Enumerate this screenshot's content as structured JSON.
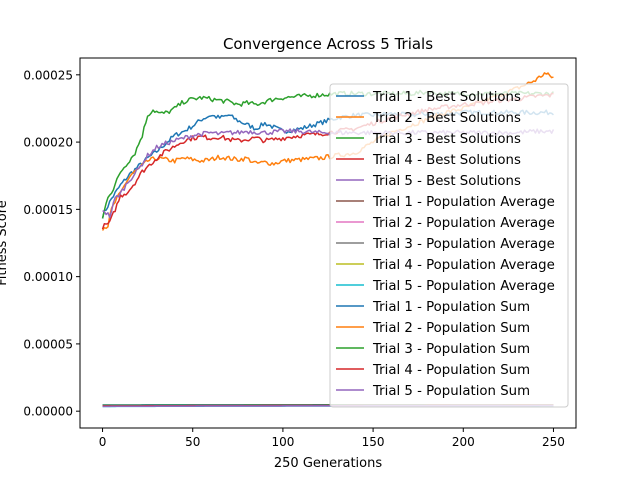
{
  "chart_data": {
    "type": "line",
    "title": "Convergence Across 5 Trials",
    "xlabel": "250 Generations",
    "ylabel": "Fitness Score",
    "xlim": [
      -12.5,
      262.5
    ],
    "ylim": [
      -1.25e-05,
      0.0002625
    ],
    "xticks": [
      0,
      50,
      100,
      150,
      200,
      250
    ],
    "xtick_labels": [
      "0",
      "50",
      "100",
      "150",
      "200",
      "250"
    ],
    "yticks": [
      0,
      5e-05,
      0.0001,
      0.00015,
      0.0002,
      0.00025
    ],
    "ytick_labels": [
      "0.00000",
      "0.00005",
      "0.00010",
      "0.00015",
      "0.00020",
      "0.00025"
    ],
    "grid": false,
    "legend_position": "upper-right",
    "series": [
      {
        "name": "Trial 1 - Best Solutions",
        "color": "#1f77b4",
        "points": [
          [
            0,
            0.000145
          ],
          [
            5,
            0.000158
          ],
          [
            10,
            0.000168
          ],
          [
            15,
            0.000176
          ],
          [
            20,
            0.000182
          ],
          [
            25,
            0.000188
          ],
          [
            30,
            0.000193
          ],
          [
            35,
            0.000199
          ],
          [
            40,
            0.000205
          ],
          [
            45,
            0.000208
          ],
          [
            50,
            0.000212
          ],
          [
            55,
            0.000217
          ],
          [
            60,
            0.00022
          ],
          [
            65,
            0.000218
          ],
          [
            70,
            0.00022
          ],
          [
            75,
            0.000216
          ],
          [
            80,
            0.000213
          ],
          [
            85,
            0.00021
          ],
          [
            90,
            0.000214
          ],
          [
            95,
            0.000211
          ],
          [
            100,
            0.000208
          ],
          [
            110,
            0.00021
          ],
          [
            120,
            0.000214
          ],
          [
            130,
            0.000218
          ],
          [
            140,
            0.00022
          ],
          [
            150,
            0.00022
          ],
          [
            160,
            0.000221
          ],
          [
            170,
            0.00022
          ],
          [
            180,
            0.000221
          ],
          [
            190,
            0.000221
          ],
          [
            200,
            0.000222
          ],
          [
            210,
            0.000222
          ],
          [
            220,
            0.000222
          ],
          [
            230,
            0.000222
          ],
          [
            240,
            0.000222
          ],
          [
            250,
            0.000222
          ]
        ]
      },
      {
        "name": "Trial 2 - Best Solutions",
        "color": "#ff7f0e",
        "points": [
          [
            0,
            0.000136
          ],
          [
            3,
            0.000138
          ],
          [
            5,
            0.00015
          ],
          [
            8,
            0.000158
          ],
          [
            10,
            0.000162
          ],
          [
            13,
            0.00017
          ],
          [
            16,
            0.000176
          ],
          [
            20,
            0.00018
          ],
          [
            25,
            0.000186
          ],
          [
            30,
            0.000188
          ],
          [
            35,
            0.000187
          ],
          [
            40,
            0.000186
          ],
          [
            45,
            0.000188
          ],
          [
            50,
            0.000187
          ],
          [
            55,
            0.000186
          ],
          [
            60,
            0.000187
          ],
          [
            65,
            0.000189
          ],
          [
            70,
            0.000188
          ],
          [
            75,
            0.000187
          ],
          [
            80,
            0.000188
          ],
          [
            85,
            0.000184
          ],
          [
            90,
            0.000185
          ],
          [
            95,
            0.000184
          ],
          [
            100,
            0.000186
          ],
          [
            110,
            0.000187
          ],
          [
            120,
            0.000188
          ],
          [
            130,
            0.00019
          ],
          [
            140,
            0.000192
          ],
          [
            150,
            0.0002
          ],
          [
            160,
            0.000207
          ],
          [
            170,
            0.000212
          ],
          [
            180,
            0.000217
          ],
          [
            190,
            0.000222
          ],
          [
            200,
            0.000225
          ],
          [
            210,
            0.00023
          ],
          [
            220,
            0.000235
          ],
          [
            230,
            0.00024
          ],
          [
            240,
            0.000246
          ],
          [
            245,
            0.000251
          ],
          [
            250,
            0.000248
          ]
        ]
      },
      {
        "name": "Trial 3 - Best Solutions",
        "color": "#2ca02c",
        "points": [
          [
            0,
            0.000143
          ],
          [
            3,
            0.00016
          ],
          [
            6,
            0.000165
          ],
          [
            10,
            0.000178
          ],
          [
            14,
            0.000185
          ],
          [
            18,
            0.000192
          ],
          [
            22,
            0.000205
          ],
          [
            25,
            0.00022
          ],
          [
            28,
            0.000224
          ],
          [
            32,
            0.000221
          ],
          [
            36,
            0.000222
          ],
          [
            40,
            0.000225
          ],
          [
            45,
            0.00023
          ],
          [
            50,
            0.000232
          ],
          [
            55,
            0.000233
          ],
          [
            60,
            0.000232
          ],
          [
            65,
            0.000231
          ],
          [
            70,
            0.00023
          ],
          [
            75,
            0.000228
          ],
          [
            80,
            0.000229
          ],
          [
            85,
            0.000228
          ],
          [
            90,
            0.00023
          ],
          [
            95,
            0.000232
          ],
          [
            100,
            0.000233
          ],
          [
            110,
            0.000234
          ],
          [
            120,
            0.000235
          ],
          [
            130,
            0.000236
          ],
          [
            140,
            0.000236
          ],
          [
            150,
            0.000236
          ],
          [
            160,
            0.000236
          ],
          [
            170,
            0.000236
          ],
          [
            180,
            0.000237
          ],
          [
            190,
            0.000236
          ],
          [
            200,
            0.000236
          ],
          [
            210,
            0.000236
          ],
          [
            220,
            0.000236
          ],
          [
            230,
            0.000236
          ],
          [
            240,
            0.000236
          ],
          [
            250,
            0.000236
          ]
        ]
      },
      {
        "name": "Trial 4 - Best Solutions",
        "color": "#d62728",
        "points": [
          [
            0,
            0.000137
          ],
          [
            4,
            0.00014
          ],
          [
            7,
            0.00015
          ],
          [
            10,
            0.00016
          ],
          [
            14,
            0.000163
          ],
          [
            18,
            0.00017
          ],
          [
            22,
            0.000178
          ],
          [
            26,
            0.000183
          ],
          [
            30,
            0.000188
          ],
          [
            35,
            0.000193
          ],
          [
            40,
            0.000197
          ],
          [
            45,
            0.000201
          ],
          [
            50,
            0.000203
          ],
          [
            55,
            0.000204
          ],
          [
            60,
            0.000203
          ],
          [
            65,
            0.000204
          ],
          [
            70,
            0.000202
          ],
          [
            75,
            0.000201
          ],
          [
            80,
            0.000202
          ],
          [
            85,
            0.000203
          ],
          [
            90,
            0.000201
          ],
          [
            95,
            0.000202
          ],
          [
            100,
            0.000203
          ],
          [
            110,
            0.000205
          ],
          [
            120,
            0.000206
          ],
          [
            130,
            0.000208
          ],
          [
            140,
            0.00021
          ],
          [
            150,
            0.000214
          ],
          [
            160,
            0.000218
          ],
          [
            170,
            0.000221
          ],
          [
            180,
            0.000224
          ],
          [
            190,
            0.000226
          ],
          [
            200,
            0.000228
          ],
          [
            210,
            0.000229
          ],
          [
            220,
            0.000231
          ],
          [
            230,
            0.000232
          ],
          [
            240,
            0.000234
          ],
          [
            250,
            0.000235
          ]
        ]
      },
      {
        "name": "Trial 5 - Best Solutions",
        "color": "#9467bd",
        "points": [
          [
            0,
            0.00015
          ],
          [
            4,
            0.000145
          ],
          [
            7,
            0.000158
          ],
          [
            10,
            0.000162
          ],
          [
            15,
            0.000172
          ],
          [
            20,
            0.00018
          ],
          [
            25,
            0.00019
          ],
          [
            30,
            0.000196
          ],
          [
            35,
            0.000199
          ],
          [
            40,
            0.000201
          ],
          [
            45,
            0.000203
          ],
          [
            50,
            0.000205
          ],
          [
            55,
            0.000206
          ],
          [
            60,
            0.000207
          ],
          [
            65,
            0.000206
          ],
          [
            70,
            0.000207
          ],
          [
            75,
            0.000207
          ],
          [
            80,
            0.000208
          ],
          [
            90,
            0.000207
          ],
          [
            100,
            0.000208
          ],
          [
            110,
            0.000208
          ],
          [
            120,
            0.000207
          ],
          [
            130,
            0.000207
          ],
          [
            140,
            0.000207
          ],
          [
            150,
            0.000207
          ],
          [
            160,
            0.000207
          ],
          [
            170,
            0.000207
          ],
          [
            180,
            0.000207
          ],
          [
            190,
            0.000207
          ],
          [
            200,
            0.000207
          ],
          [
            210,
            0.000207
          ],
          [
            220,
            0.000207
          ],
          [
            230,
            0.000207
          ],
          [
            240,
            0.000208
          ],
          [
            250,
            0.000208
          ]
        ]
      },
      {
        "name": "Trial 1 - Population Average",
        "color": "#8c564b",
        "points": [
          [
            0,
            4.5e-06
          ],
          [
            50,
            4.6e-06
          ],
          [
            100,
            4.6e-06
          ],
          [
            150,
            4.7e-06
          ],
          [
            200,
            4.7e-06
          ],
          [
            250,
            4.7e-06
          ]
        ]
      },
      {
        "name": "Trial 2 - Population Average",
        "color": "#e377c2",
        "points": [
          [
            0,
            4e-06
          ],
          [
            50,
            4.1e-06
          ],
          [
            100,
            4.2e-06
          ],
          [
            150,
            4.3e-06
          ],
          [
            200,
            4.4e-06
          ],
          [
            250,
            4.5e-06
          ]
        ]
      },
      {
        "name": "Trial 3 - Population Average",
        "color": "#7f7f7f",
        "points": [
          [
            0,
            4.2e-06
          ],
          [
            50,
            4.3e-06
          ],
          [
            100,
            4.4e-06
          ],
          [
            150,
            4.5e-06
          ],
          [
            200,
            4.5e-06
          ],
          [
            250,
            4.6e-06
          ]
        ]
      },
      {
        "name": "Trial 4 - Population Average",
        "color": "#bcbd22",
        "points": [
          [
            0,
            3.8e-06
          ],
          [
            50,
            4e-06
          ],
          [
            100,
            4.1e-06
          ],
          [
            150,
            4.2e-06
          ],
          [
            200,
            4.3e-06
          ],
          [
            250,
            4.4e-06
          ]
        ]
      },
      {
        "name": "Trial 5 - Population Average",
        "color": "#17becf",
        "points": [
          [
            0,
            3.5e-06
          ],
          [
            50,
            3.7e-06
          ],
          [
            100,
            3.8e-06
          ],
          [
            150,
            3.9e-06
          ],
          [
            200,
            4e-06
          ],
          [
            250,
            4.1e-06
          ]
        ]
      },
      {
        "name": "Trial 1 - Population Sum",
        "color": "#1f77b4",
        "points": [
          [
            0,
            4.6e-06
          ],
          [
            50,
            4.7e-06
          ],
          [
            100,
            4.7e-06
          ],
          [
            150,
            4.8e-06
          ],
          [
            200,
            4.8e-06
          ],
          [
            250,
            4.8e-06
          ]
        ]
      },
      {
        "name": "Trial 2 - Population Sum",
        "color": "#ff7f0e",
        "points": [
          [
            0,
            4.1e-06
          ],
          [
            50,
            4.2e-06
          ],
          [
            100,
            4.3e-06
          ],
          [
            150,
            4.4e-06
          ],
          [
            200,
            4.5e-06
          ],
          [
            250,
            4.6e-06
          ]
        ]
      },
      {
        "name": "Trial 3 - Population Sum",
        "color": "#2ca02c",
        "points": [
          [
            0,
            4.3e-06
          ],
          [
            50,
            4.4e-06
          ],
          [
            100,
            4.5e-06
          ],
          [
            150,
            4.6e-06
          ],
          [
            200,
            4.6e-06
          ],
          [
            250,
            4.7e-06
          ]
        ]
      },
      {
        "name": "Trial 4 - Population Sum",
        "color": "#d62728",
        "points": [
          [
            0,
            3.9e-06
          ],
          [
            50,
            4.1e-06
          ],
          [
            100,
            4.2e-06
          ],
          [
            150,
            4.3e-06
          ],
          [
            200,
            4.4e-06
          ],
          [
            250,
            4.5e-06
          ]
        ]
      },
      {
        "name": "Trial 5 - Population Sum",
        "color": "#9467bd",
        "points": [
          [
            0,
            3.6e-06
          ],
          [
            50,
            3.8e-06
          ],
          [
            100,
            3.9e-06
          ],
          [
            150,
            4e-06
          ],
          [
            200,
            4.1e-06
          ],
          [
            250,
            4.2e-06
          ]
        ]
      }
    ]
  }
}
